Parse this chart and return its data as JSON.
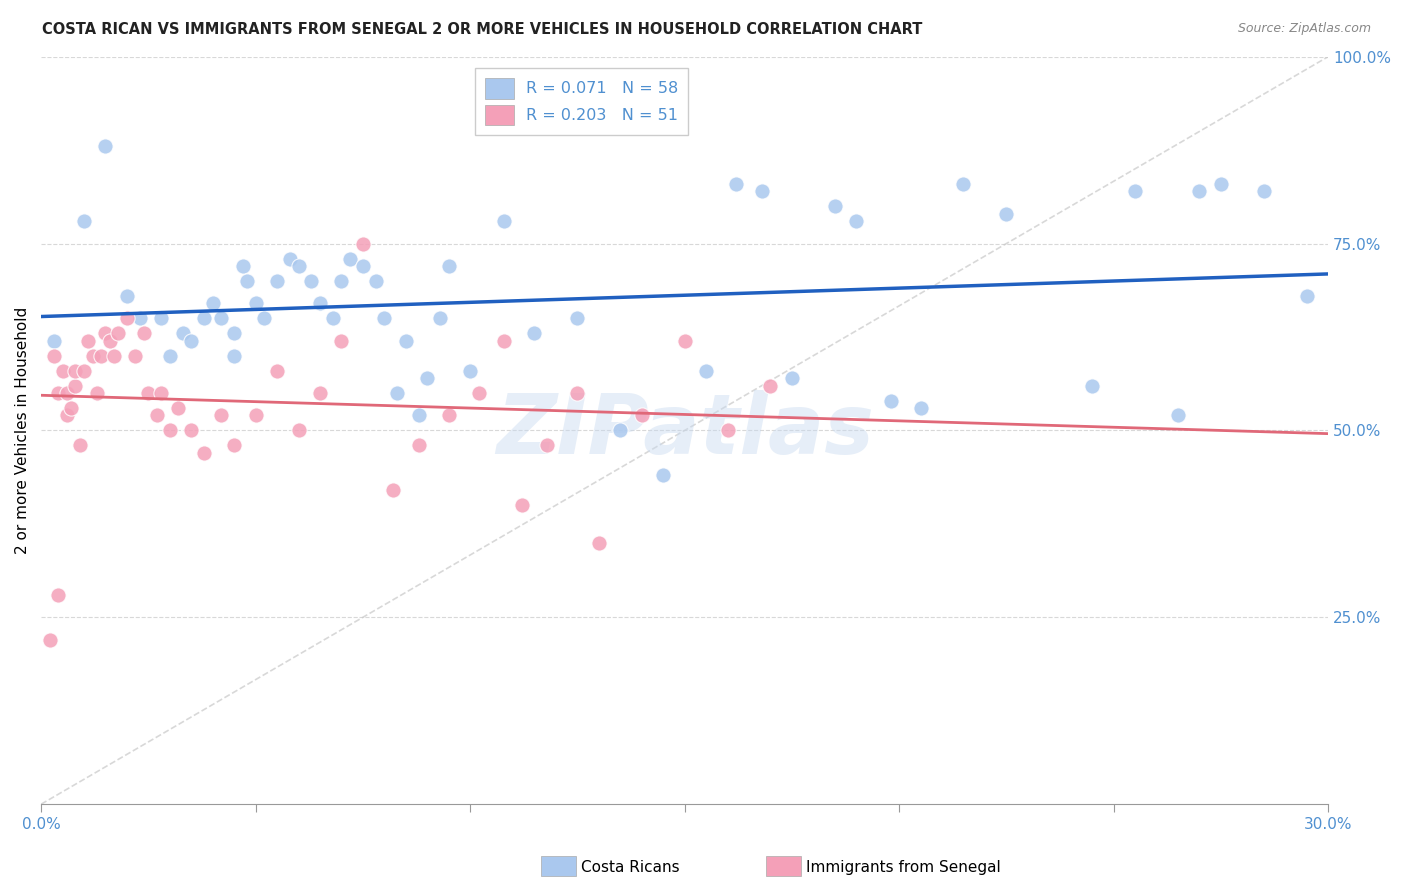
{
  "title": "COSTA RICAN VS IMMIGRANTS FROM SENEGAL 2 OR MORE VEHICLES IN HOUSEHOLD CORRELATION CHART",
  "source": "Source: ZipAtlas.com",
  "ylabel": "2 or more Vehicles in Household",
  "xmin": 0.0,
  "xmax": 0.3,
  "ymin": 0.0,
  "ymax": 1.0,
  "xtick_vals": [
    0.0,
    0.05,
    0.1,
    0.15,
    0.2,
    0.25,
    0.3
  ],
  "xtick_labels": [
    "0.0%",
    "",
    "",
    "",
    "",
    "",
    "30.0%"
  ],
  "ytick_vals": [
    0.25,
    0.5,
    0.75,
    1.0
  ],
  "ytick_labels": [
    "25.0%",
    "50.0%",
    "75.0%",
    "100.0%"
  ],
  "blue_dot_color": "#aac8ee",
  "pink_dot_color": "#f4a0b8",
  "blue_line_color": "#2060c0",
  "pink_line_color": "#e06878",
  "diag_line_color": "#c8c8c8",
  "grid_color": "#d8d8d8",
  "tick_color": "#5090d0",
  "title_color": "#222222",
  "source_color": "#888888",
  "R_blue": 0.071,
  "N_blue": 58,
  "R_pink": 0.203,
  "N_pink": 51,
  "blue_scatter_x": [
    0.003,
    0.01,
    0.015,
    0.02,
    0.023,
    0.028,
    0.03,
    0.033,
    0.035,
    0.038,
    0.04,
    0.042,
    0.045,
    0.045,
    0.047,
    0.048,
    0.05,
    0.052,
    0.055,
    0.058,
    0.06,
    0.063,
    0.065,
    0.068,
    0.07,
    0.072,
    0.075,
    0.078,
    0.08,
    0.083,
    0.085,
    0.088,
    0.09,
    0.093,
    0.095,
    0.1,
    0.108,
    0.115,
    0.125,
    0.135,
    0.145,
    0.155,
    0.162,
    0.168,
    0.175,
    0.185,
    0.19,
    0.198,
    0.205,
    0.215,
    0.225,
    0.245,
    0.255,
    0.265,
    0.27,
    0.275,
    0.285,
    0.295
  ],
  "blue_scatter_y": [
    0.62,
    0.78,
    0.88,
    0.68,
    0.65,
    0.65,
    0.6,
    0.63,
    0.62,
    0.65,
    0.67,
    0.65,
    0.6,
    0.63,
    0.72,
    0.7,
    0.67,
    0.65,
    0.7,
    0.73,
    0.72,
    0.7,
    0.67,
    0.65,
    0.7,
    0.73,
    0.72,
    0.7,
    0.65,
    0.55,
    0.62,
    0.52,
    0.57,
    0.65,
    0.72,
    0.58,
    0.78,
    0.63,
    0.65,
    0.5,
    0.44,
    0.58,
    0.83,
    0.82,
    0.57,
    0.8,
    0.78,
    0.54,
    0.53,
    0.83,
    0.79,
    0.56,
    0.82,
    0.52,
    0.82,
    0.83,
    0.82,
    0.68
  ],
  "pink_scatter_x": [
    0.002,
    0.003,
    0.004,
    0.004,
    0.005,
    0.006,
    0.006,
    0.007,
    0.008,
    0.008,
    0.009,
    0.01,
    0.011,
    0.012,
    0.013,
    0.014,
    0.015,
    0.016,
    0.017,
    0.018,
    0.02,
    0.022,
    0.024,
    0.025,
    0.027,
    0.028,
    0.03,
    0.032,
    0.035,
    0.038,
    0.042,
    0.045,
    0.05,
    0.055,
    0.06,
    0.065,
    0.07,
    0.075,
    0.082,
    0.088,
    0.095,
    0.102,
    0.108,
    0.112,
    0.118,
    0.125,
    0.13,
    0.14,
    0.15,
    0.16,
    0.17
  ],
  "pink_scatter_y": [
    0.22,
    0.6,
    0.28,
    0.55,
    0.58,
    0.52,
    0.55,
    0.53,
    0.56,
    0.58,
    0.48,
    0.58,
    0.62,
    0.6,
    0.55,
    0.6,
    0.63,
    0.62,
    0.6,
    0.63,
    0.65,
    0.6,
    0.63,
    0.55,
    0.52,
    0.55,
    0.5,
    0.53,
    0.5,
    0.47,
    0.52,
    0.48,
    0.52,
    0.58,
    0.5,
    0.55,
    0.62,
    0.75,
    0.42,
    0.48,
    0.52,
    0.55,
    0.62,
    0.4,
    0.48,
    0.55,
    0.35,
    0.52,
    0.62,
    0.5,
    0.56
  ],
  "watermark_text": "ZIPatlas",
  "legend_blue_label": "R = 0.071   N = 58",
  "legend_pink_label": "R = 0.203   N = 51",
  "bottom_legend_blue": "Costa Ricans",
  "bottom_legend_pink": "Immigrants from Senegal"
}
